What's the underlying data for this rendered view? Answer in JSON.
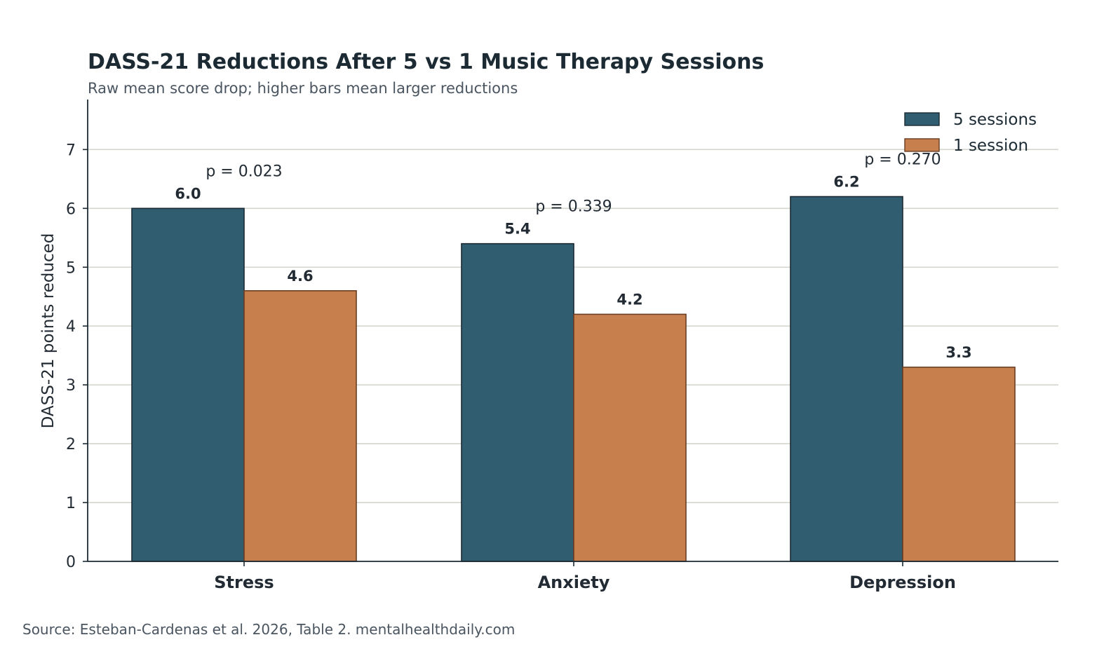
{
  "chart_data": {
    "type": "bar",
    "title": "DASS-21 Reductions After 5 vs 1 Music Therapy Sessions",
    "subtitle": "Raw mean score drop; higher bars mean larger reductions",
    "xlabel": "",
    "ylabel": "DASS-21 points reduced",
    "categories": [
      "Stress",
      "Anxiety",
      "Depression"
    ],
    "series": [
      {
        "name": "5 sessions",
        "values": [
          6.0,
          5.4,
          6.2
        ],
        "labels": [
          "6.0",
          "5.4",
          "6.2"
        ],
        "color": "#305e70"
      },
      {
        "name": "1 session",
        "values": [
          4.6,
          4.2,
          3.3
        ],
        "labels": [
          "4.6",
          "4.2",
          "3.3"
        ],
        "color": "#c67f4d"
      }
    ],
    "annotations": [
      "p = 0.023",
      "p = 0.339",
      "p = 0.270"
    ],
    "ylim": [
      0,
      7.85
    ],
    "yticks": [
      "0",
      "1",
      "2",
      "3",
      "4",
      "5",
      "6",
      "7"
    ],
    "grid": true,
    "legend": "top-right",
    "source": "Source: Esteban-Cardenas et al. 2026, Table 2. mentalhealthdaily.com"
  },
  "colors": {
    "grid": "#d3d6cc",
    "axis": "#1b2a33",
    "bar5_edge": "#1b2a33",
    "bar1_edge": "#6b3d22"
  }
}
